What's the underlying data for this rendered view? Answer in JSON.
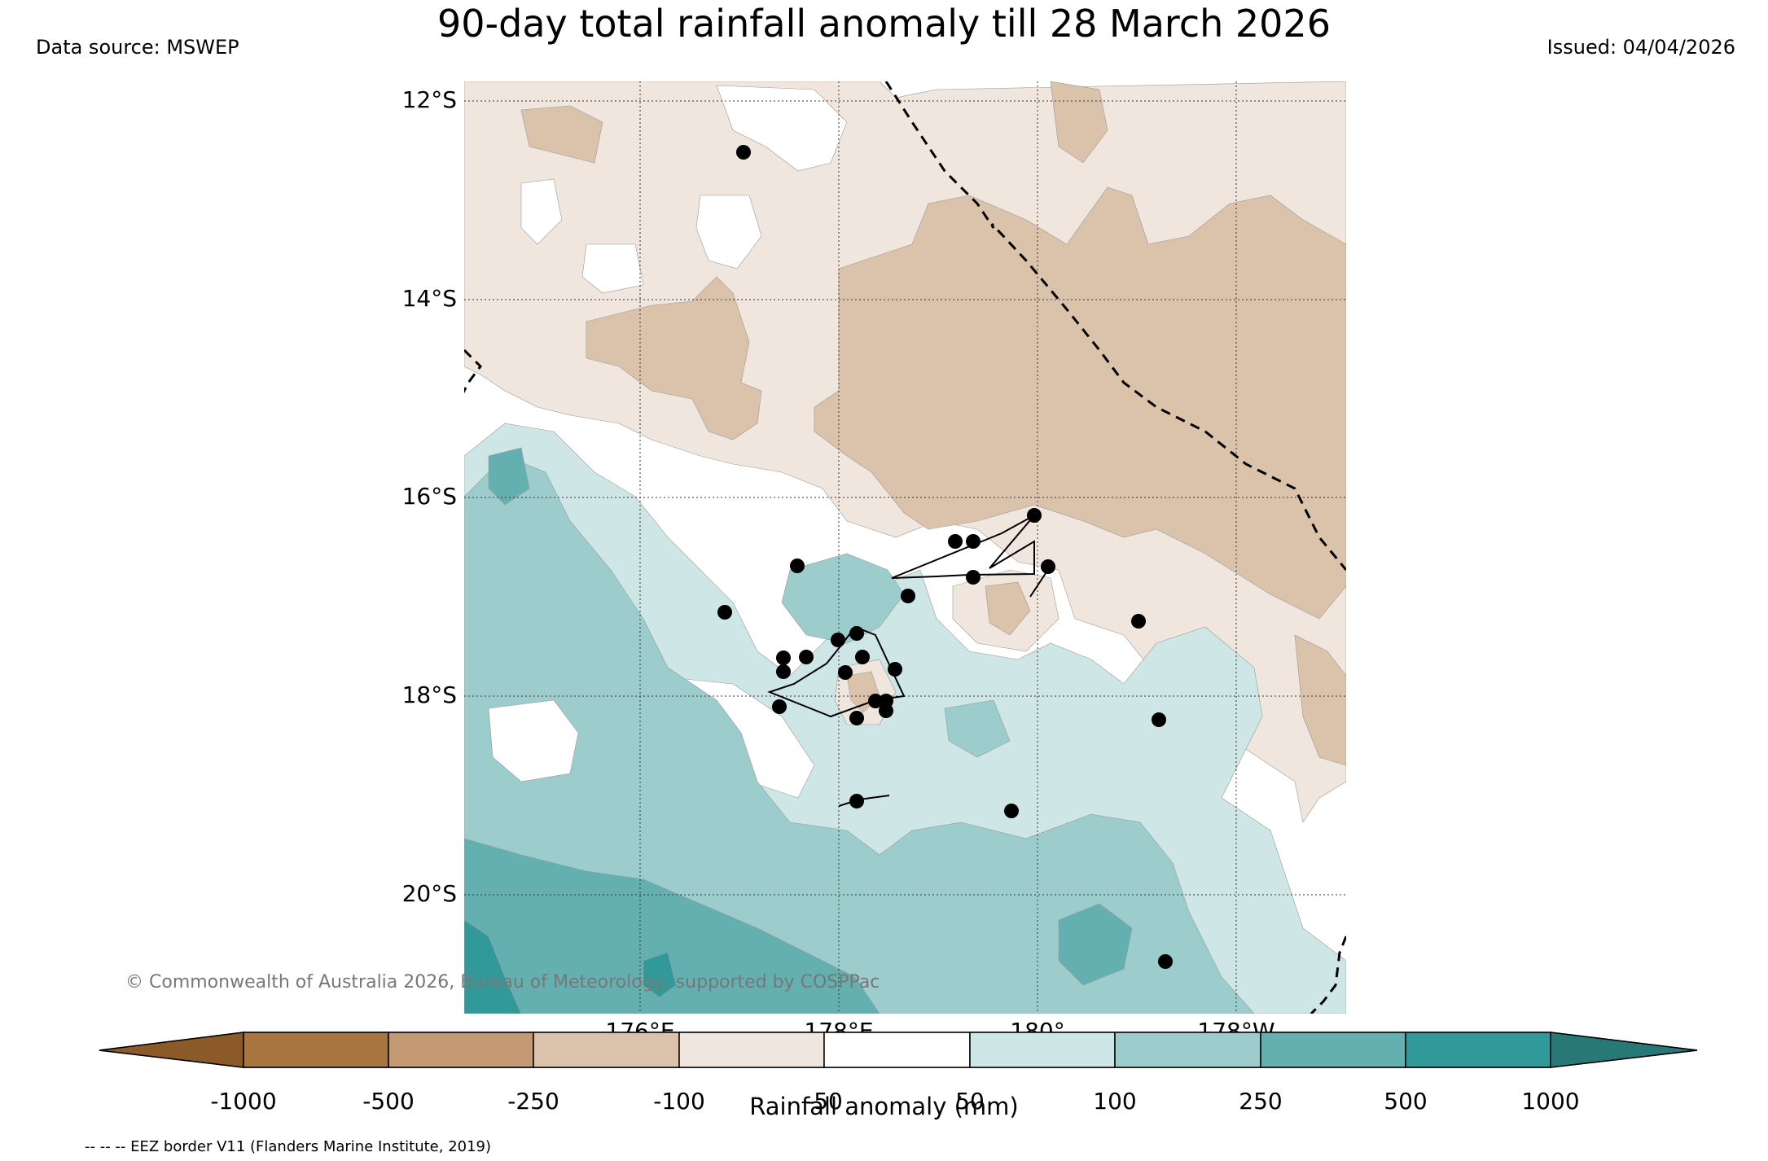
{
  "title": "90-day total rainfall anomaly till 28 March 2026",
  "data_source": "Data source: MSWEP",
  "issued": "Issued: 04/04/2026",
  "copyright": "© Commonwealth of Australia 2026, Bureau of Meteorology, supported by COSPPac",
  "eez_note": "-- -- -- EEZ border V11 (Flanders Marine Institute, 2019)",
  "latitudes": [
    "12°S",
    "14°S",
    "16°S",
    "18°S",
    "20°S"
  ],
  "longitudes": [
    "176°E",
    "178°E",
    "180°",
    "178°W"
  ],
  "colorbar": {
    "title": "Rainfall anomaly (mm)",
    "ticks": [
      "-1000",
      "-500",
      "-250",
      "-100",
      "-50",
      "50",
      "100",
      "250",
      "500",
      "1000"
    ],
    "colors": {
      "lt_-1000": "#8c5a28",
      "-1000_-500": "#a97642",
      "-500_-250": "#c39a74",
      "-250_-100": "#dbc3ab",
      "-100_-50": "#f1e6dd",
      "-50_50": "#ffffff",
      "50_100": "#cfe6e6",
      "100_250": "#9ccccc",
      "250_500": "#64b0b0",
      "500_1000": "#32999a",
      "gt_1000": "#277877"
    }
  }
}
